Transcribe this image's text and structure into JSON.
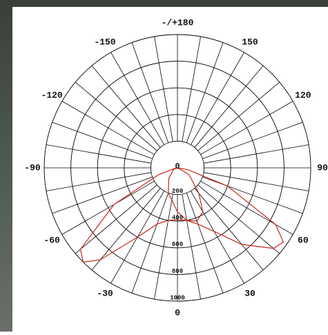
{
  "chart_data": {
    "type": "polar",
    "rlim": [
      0,
      1000
    ],
    "rticks": [
      0,
      200,
      400,
      600,
      800,
      1000
    ],
    "angle_ticks": [
      0,
      30,
      60,
      90,
      120,
      150,
      {
        "value": 180,
        "label": "-/+180"
      },
      -150,
      -120,
      -90,
      -60,
      -30
    ],
    "series": [
      {
        "color": "#c8261a",
        "angles": [
          -90,
          -80,
          -70,
          -60,
          -50,
          -45,
          -40,
          -30,
          -20,
          -10,
          0,
          10,
          20,
          30,
          40,
          50,
          55,
          60,
          70,
          80,
          90
        ],
        "values": [
          0,
          20,
          150,
          550,
          950,
          1000,
          900,
          600,
          450,
          400,
          390,
          400,
          450,
          550,
          750,
          940,
          970,
          850,
          400,
          80,
          0
        ]
      },
      {
        "color": "#c8261a",
        "angles": [
          -90,
          -70,
          -40,
          -20,
          0,
          10,
          20,
          30,
          40,
          60,
          90
        ],
        "values": [
          0,
          30,
          100,
          200,
          330,
          400,
          425,
          380,
          250,
          100,
          0
        ]
      }
    ]
  }
}
